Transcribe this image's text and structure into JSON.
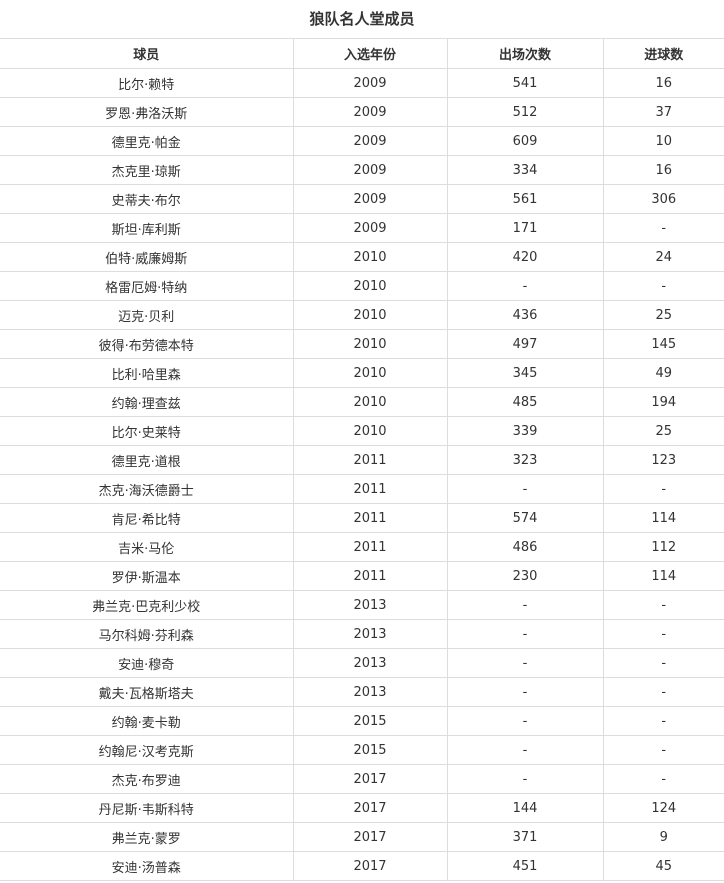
{
  "page_title": "狼队名人堂成员",
  "colors": {
    "background": "#ffffff",
    "text": "#333333",
    "border": "#dddddd"
  },
  "chart_data": {
    "type": "table",
    "title": "狼队名人堂成员",
    "columns": [
      "球员",
      "入选年份",
      "出场次数",
      "进球数"
    ],
    "rows": [
      [
        "比尔·赖特",
        "2009",
        "541",
        "16"
      ],
      [
        "罗恩·弗洛沃斯",
        "2009",
        "512",
        "37"
      ],
      [
        "德里克·帕金",
        "2009",
        "609",
        "10"
      ],
      [
        "杰克里·琼斯",
        "2009",
        "334",
        "16"
      ],
      [
        "史蒂夫·布尔",
        "2009",
        "561",
        "306"
      ],
      [
        "斯坦·库利斯",
        "2009",
        "171",
        "-"
      ],
      [
        "伯特·威廉姆斯",
        "2010",
        "420",
        "24"
      ],
      [
        "格雷厄姆·特纳",
        "2010",
        "-",
        "-"
      ],
      [
        "迈克·贝利",
        "2010",
        "436",
        "25"
      ],
      [
        "彼得·布劳德本特",
        "2010",
        "497",
        "145"
      ],
      [
        "比利·哈里森",
        "2010",
        "345",
        "49"
      ],
      [
        "约翰·理查兹",
        "2010",
        "485",
        "194"
      ],
      [
        "比尔·史莱特",
        "2010",
        "339",
        "25"
      ],
      [
        "德里克·道根",
        "2011",
        "323",
        "123"
      ],
      [
        "杰克·海沃德爵士",
        "2011",
        "-",
        "-"
      ],
      [
        "肯尼·希比特",
        "2011",
        "574",
        "114"
      ],
      [
        "吉米·马伦",
        "2011",
        "486",
        "112"
      ],
      [
        "罗伊·斯温本",
        "2011",
        "230",
        "114"
      ],
      [
        "弗兰克·巴克利少校",
        "2013",
        "-",
        "-"
      ],
      [
        "马尔科姆·芬利森",
        "2013",
        "-",
        "-"
      ],
      [
        "安迪·穆奇",
        "2013",
        "-",
        "-"
      ],
      [
        "戴夫·瓦格斯塔夫",
        "2013",
        "-",
        "-"
      ],
      [
        "约翰·麦卡勒",
        "2015",
        "-",
        "-"
      ],
      [
        "约翰尼·汉考克斯",
        "2015",
        "-",
        "-"
      ],
      [
        "杰克·布罗迪",
        "2017",
        "-",
        "-"
      ],
      [
        "丹尼斯·韦斯科特",
        "2017",
        "144",
        "124"
      ],
      [
        "弗兰克·蒙罗",
        "2017",
        "371",
        "9"
      ],
      [
        "安迪·汤普森",
        "2017",
        "451",
        "45"
      ]
    ]
  }
}
